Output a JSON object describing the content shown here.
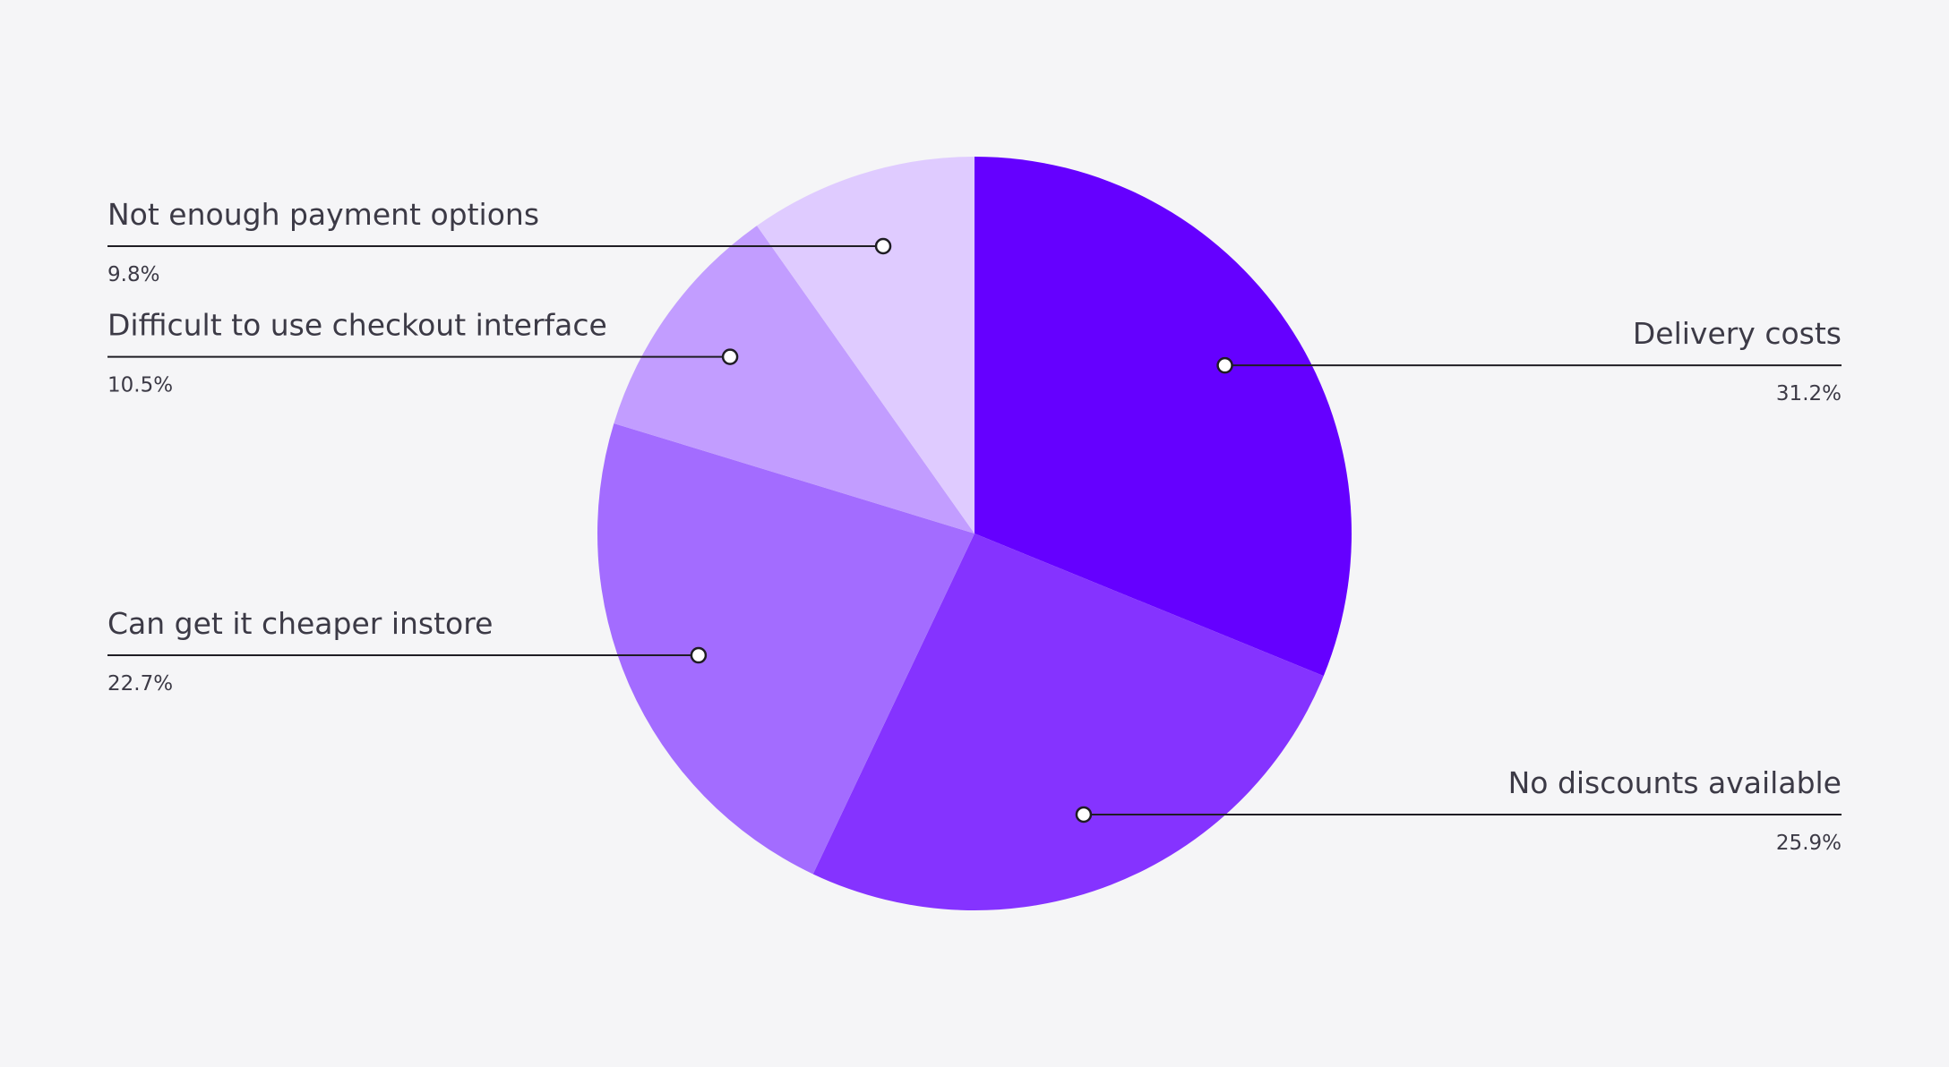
{
  "chart_data": {
    "type": "pie",
    "categories": [
      "Delivery costs",
      "No discounts available",
      "Can get it cheaper instore",
      "Difficult to use checkout interface",
      "Not enough payment options"
    ],
    "values": [
      31.2,
      25.9,
      22.7,
      10.5,
      9.8
    ],
    "value_labels": [
      "31.2%",
      "25.9%",
      "22.7%",
      "10.5%",
      "9.8%"
    ],
    "colors": [
      "#6500ff",
      "#8533ff",
      "#a36cff",
      "#c29dff",
      "#dfcbff"
    ],
    "start_angle": "12 o'clock",
    "direction": "clockwise",
    "legend": "none",
    "label_sides": [
      "right",
      "right",
      "left",
      "left",
      "left"
    ]
  }
}
